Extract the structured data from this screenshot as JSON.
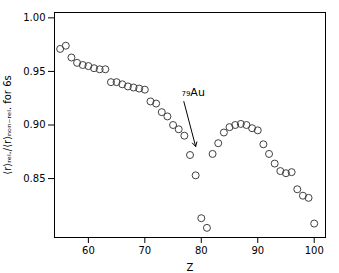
{
  "chart_data": {
    "type": "scatter",
    "xlabel": "Z",
    "ylabel": "⟨r⟩ᵣₑₗ./⟨r⟩ₙₒₙ₋ᵣₑₗ. for 6s",
    "x": [
      55,
      56,
      57,
      58,
      59,
      60,
      61,
      62,
      63,
      64,
      65,
      66,
      67,
      68,
      69,
      70,
      71,
      72,
      73,
      74,
      75,
      76,
      77,
      78,
      79,
      80,
      81,
      82,
      83,
      84,
      85,
      86,
      87,
      88,
      89,
      90,
      91,
      92,
      93,
      94,
      95,
      96,
      97,
      98,
      99,
      100
    ],
    "values": [
      0.971,
      0.974,
      0.963,
      0.958,
      0.956,
      0.955,
      0.953,
      0.952,
      0.952,
      0.94,
      0.94,
      0.938,
      0.936,
      0.935,
      0.934,
      0.933,
      0.922,
      0.92,
      0.912,
      0.908,
      0.9,
      0.896,
      0.89,
      0.872,
      0.853,
      0.813,
      0.804,
      0.873,
      0.883,
      0.893,
      0.898,
      0.9,
      0.901,
      0.9,
      0.897,
      0.895,
      0.882,
      0.873,
      0.864,
      0.857,
      0.855,
      0.856,
      0.84,
      0.834,
      0.832,
      0.808
    ],
    "color": "#404040",
    "marker": "circle",
    "annotations": [
      {
        "text": "₇₉Au",
        "xy": [
          79,
          0.88
        ],
        "xytext": [
          76.5,
          0.93
        ]
      }
    ],
    "xlim": [
      54,
      102
    ],
    "ylim": [
      0.795,
      1.005
    ],
    "xticks": [
      60,
      70,
      80,
      90,
      100
    ],
    "yticks": [
      0.85,
      {
        "value": 0.9,
        "label": "0.90"
      },
      0.95,
      {
        "value": 1.0,
        "label": "1.00"
      }
    ],
    "grid": false
  }
}
